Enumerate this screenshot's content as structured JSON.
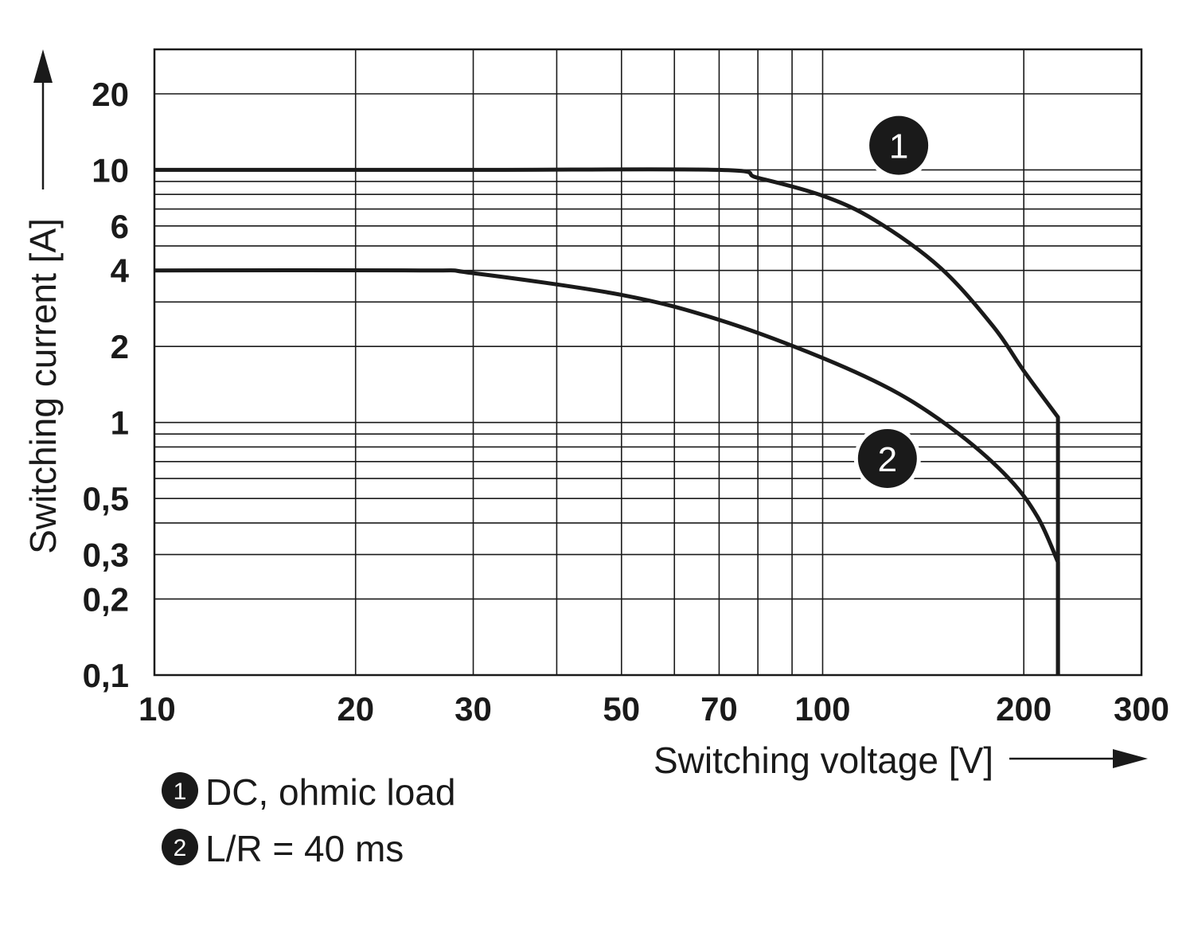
{
  "chart_data": {
    "type": "line",
    "title": "",
    "xlabel": "Switching voltage [V]",
    "ylabel": "Switching current [A]",
    "x_scale": "log",
    "y_scale": "log",
    "xlim": [
      10,
      300
    ],
    "ylim": [
      0.1,
      30
    ],
    "grid": true,
    "x_major_ticks": [
      10,
      20,
      30,
      40,
      50,
      60,
      70,
      80,
      90,
      100,
      200,
      300
    ],
    "y_major_ticks": [
      0.1,
      0.2,
      0.3,
      0.4,
      0.5,
      0.6,
      0.7,
      0.8,
      0.9,
      1,
      2,
      3,
      4,
      5,
      6,
      7,
      8,
      9,
      10,
      20
    ],
    "x_tick_labels": [
      {
        "value": 10,
        "label": "10"
      },
      {
        "value": 20,
        "label": "20"
      },
      {
        "value": 30,
        "label": "30"
      },
      {
        "value": 50,
        "label": "50"
      },
      {
        "value": 70,
        "label": "70"
      },
      {
        "value": 100,
        "label": "100"
      },
      {
        "value": 200,
        "label": "200"
      },
      {
        "value": 300,
        "label": "300"
      }
    ],
    "y_tick_labels": [
      {
        "value": 20,
        "label": "20"
      },
      {
        "value": 10,
        "label": "10"
      },
      {
        "value": 6,
        "label": "6"
      },
      {
        "value": 4,
        "label": "4"
      },
      {
        "value": 2,
        "label": "2"
      },
      {
        "value": 1,
        "label": "1"
      },
      {
        "value": 0.5,
        "label": "0,5"
      },
      {
        "value": 0.3,
        "label": "0,3"
      },
      {
        "value": 0.2,
        "label": "0,2"
      },
      {
        "value": 0.1,
        "label": "0,1"
      }
    ],
    "series": [
      {
        "name": "DC, ohmic load",
        "marker": "1",
        "points": [
          [
            10,
            10
          ],
          [
            30,
            10
          ],
          [
            70,
            10
          ],
          [
            80,
            9.3
          ],
          [
            100,
            7.9
          ],
          [
            120,
            6.3
          ],
          [
            150,
            4.1
          ],
          [
            180,
            2.4
          ],
          [
            200,
            1.6
          ],
          [
            225,
            1.05
          ],
          [
            225,
            0.1
          ]
        ]
      },
      {
        "name": "L/R = 40 ms",
        "marker": "2",
        "points": [
          [
            10,
            4
          ],
          [
            25,
            4
          ],
          [
            30,
            3.9
          ],
          [
            50,
            3.2
          ],
          [
            70,
            2.55
          ],
          [
            100,
            1.8
          ],
          [
            130,
            1.3
          ],
          [
            160,
            0.9
          ],
          [
            190,
            0.6
          ],
          [
            210,
            0.42
          ],
          [
            225,
            0.28
          ],
          [
            225,
            0.1
          ]
        ]
      }
    ],
    "legend": {
      "placement": "bottom-left",
      "items": [
        {
          "marker": "1",
          "text": "DC, ohmic load"
        },
        {
          "marker": "2",
          "text": "L/R = 40 ms"
        }
      ]
    },
    "annotations": [
      {
        "marker": "1",
        "near": [
          130,
          12.5
        ]
      },
      {
        "marker": "2",
        "near": [
          125,
          0.72
        ]
      }
    ]
  }
}
